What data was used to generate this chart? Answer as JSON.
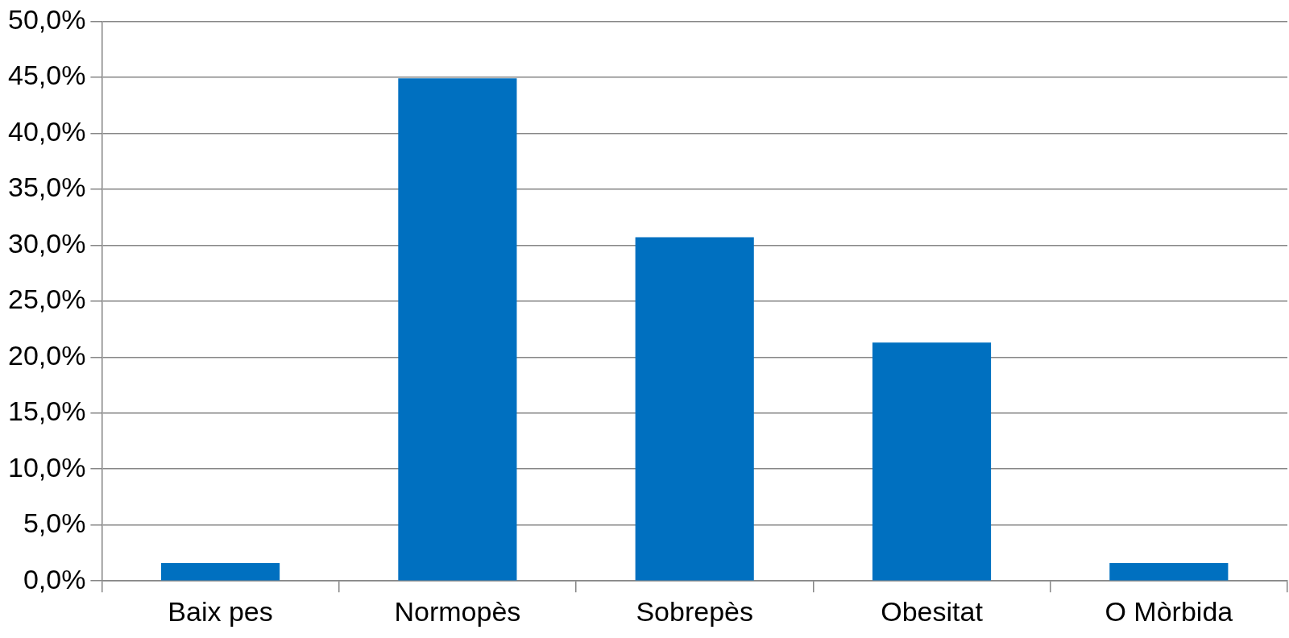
{
  "chart_data": {
    "type": "bar",
    "categories": [
      "Baix pes",
      "Normopès",
      "Sobrepès",
      "Obesitat",
      "O Mòrbida"
    ],
    "values": [
      1.6,
      44.9,
      30.7,
      21.3,
      1.6
    ],
    "color": "#0070c0",
    "ylim": [
      0,
      50
    ],
    "yticks": [
      {
        "value": 0,
        "label": "0,0%"
      },
      {
        "value": 5,
        "label": "5,0%"
      },
      {
        "value": 10,
        "label": "10,0%"
      },
      {
        "value": 15,
        "label": "15,0%"
      },
      {
        "value": 20,
        "label": "20,0%"
      },
      {
        "value": 25,
        "label": "25,0%"
      },
      {
        "value": 30,
        "label": "30,0%"
      },
      {
        "value": 35,
        "label": "35,0%"
      },
      {
        "value": 40,
        "label": "40,0%"
      },
      {
        "value": 45,
        "label": "45,0%"
      },
      {
        "value": 50,
        "label": "50,0%"
      }
    ],
    "grid": "y",
    "legend": false
  }
}
